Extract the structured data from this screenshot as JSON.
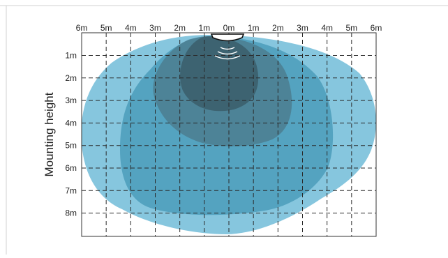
{
  "diagram": {
    "y_axis_title": "Mounting height",
    "x_tick_labels": [
      "6m",
      "5m",
      "4m",
      "3m",
      "2m",
      "1m",
      "0m",
      "1m",
      "2m",
      "3m",
      "4m",
      "5m",
      "6m"
    ],
    "y_tick_labels": [
      "1m",
      "2m",
      "3m",
      "4m",
      "5m",
      "6m",
      "7m",
      "8m"
    ],
    "detection_zone_colors": [
      "#7fc3dc",
      "#4f9fbd",
      "#4d7f92",
      "#3c5f6d"
    ],
    "gridline_style": "dashed",
    "sensor_icon": "motion-sensor-icon"
  }
}
